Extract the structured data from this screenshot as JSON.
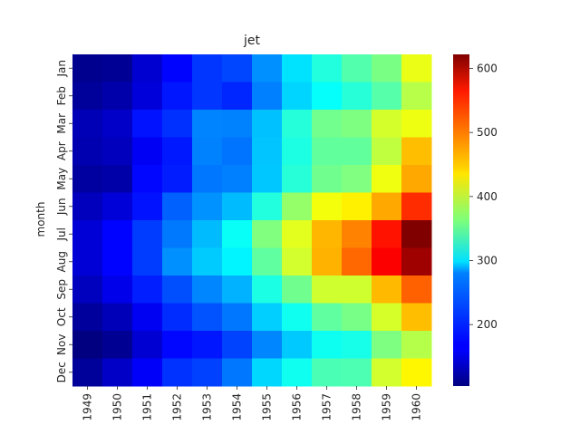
{
  "chart_data": {
    "type": "heatmap",
    "title": "jet",
    "xlabel": "",
    "ylabel": "month",
    "colormap": "jet",
    "x_categories": [
      "1949",
      "1950",
      "1951",
      "1952",
      "1953",
      "1954",
      "1955",
      "1956",
      "1957",
      "1958",
      "1959",
      "1960"
    ],
    "y_categories": [
      "Jan",
      "Feb",
      "Mar",
      "Apr",
      "May",
      "Jun",
      "Jul",
      "Aug",
      "Sep",
      "Oct",
      "Nov",
      "Dec"
    ],
    "values": [
      [
        112,
        115,
        145,
        171,
        196,
        204,
        242,
        284,
        315,
        340,
        360,
        417
      ],
      [
        118,
        126,
        150,
        180,
        196,
        188,
        233,
        277,
        301,
        318,
        342,
        391
      ],
      [
        132,
        141,
        178,
        193,
        236,
        235,
        267,
        317,
        356,
        362,
        406,
        419
      ],
      [
        129,
        135,
        163,
        181,
        235,
        227,
        269,
        313,
        348,
        348,
        396,
        461
      ],
      [
        121,
        125,
        172,
        183,
        229,
        234,
        270,
        318,
        355,
        363,
        420,
        472
      ],
      [
        135,
        149,
        178,
        218,
        243,
        264,
        315,
        374,
        422,
        435,
        472,
        535
      ],
      [
        148,
        170,
        199,
        230,
        264,
        302,
        364,
        413,
        465,
        491,
        548,
        622
      ],
      [
        148,
        170,
        199,
        242,
        272,
        293,
        347,
        405,
        467,
        505,
        559,
        606
      ],
      [
        136,
        158,
        184,
        209,
        237,
        259,
        312,
        355,
        404,
        404,
        463,
        508
      ],
      [
        119,
        133,
        162,
        191,
        211,
        229,
        274,
        306,
        347,
        359,
        407,
        461
      ],
      [
        104,
        114,
        146,
        172,
        180,
        203,
        237,
        271,
        305,
        310,
        362,
        390
      ],
      [
        118,
        140,
        166,
        194,
        201,
        229,
        278,
        306,
        336,
        337,
        405,
        432
      ]
    ],
    "vmin": 104,
    "vmax": 622,
    "colorbar_ticks": [
      200,
      300,
      400,
      500,
      600
    ],
    "grid": false,
    "legend": "colorbar-right"
  }
}
